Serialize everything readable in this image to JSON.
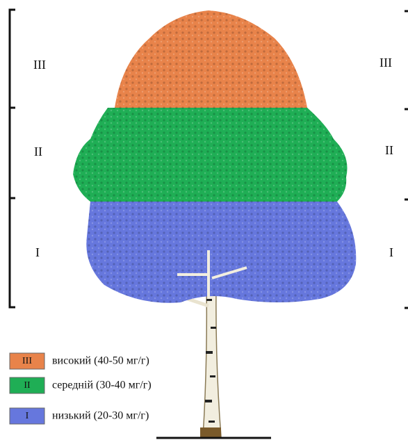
{
  "zones": [
    {
      "label": "III",
      "legend": "високий (40-50 мг/г)",
      "color": "#e8834a"
    },
    {
      "label": "II",
      "legend": "середній (30-40 мг/г)",
      "color": "#1fae55"
    },
    {
      "label": "I",
      "legend": "низький (20-30 мг/г)",
      "color": "#6677dd"
    }
  ]
}
